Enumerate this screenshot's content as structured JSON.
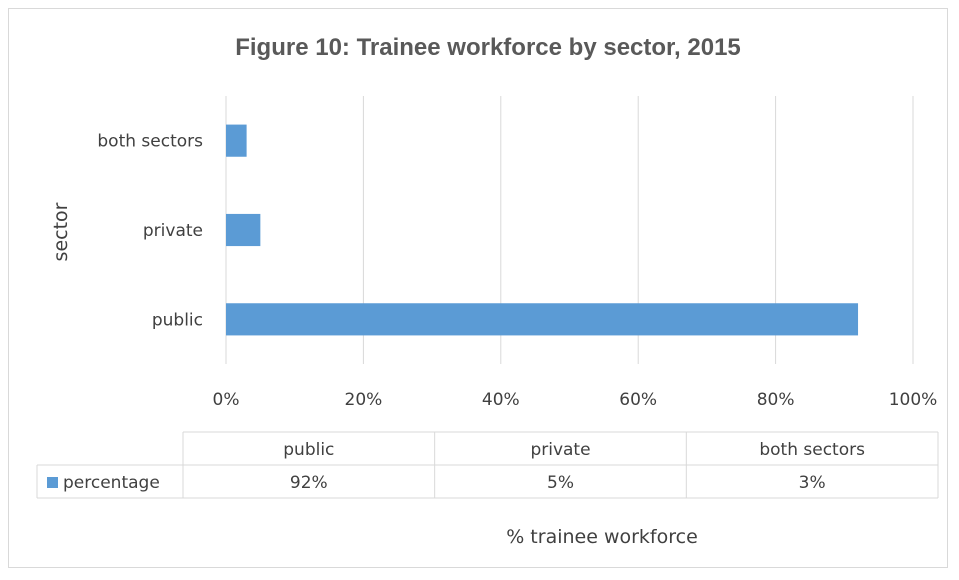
{
  "chart_data": {
    "type": "bar",
    "orientation": "horizontal",
    "title": "Figure 10: Trainee workforce by sector, 2015",
    "ylabel": "sector",
    "xlabel": "% trainee workforce",
    "categories": [
      "public",
      "private",
      "both sectors"
    ],
    "series": [
      {
        "name": "percentage",
        "values": [
          92,
          5,
          3
        ],
        "color": "#5b9bd5"
      }
    ],
    "xlim": [
      0,
      100
    ],
    "x_ticks": [
      "0%",
      "20%",
      "40%",
      "60%",
      "80%",
      "100%"
    ],
    "grid": true,
    "data_table": {
      "headers": [
        "public",
        "private",
        "both sectors"
      ],
      "rows": [
        {
          "label": "percentage",
          "values": [
            "92%",
            "5%",
            "3%"
          ]
        }
      ]
    }
  }
}
